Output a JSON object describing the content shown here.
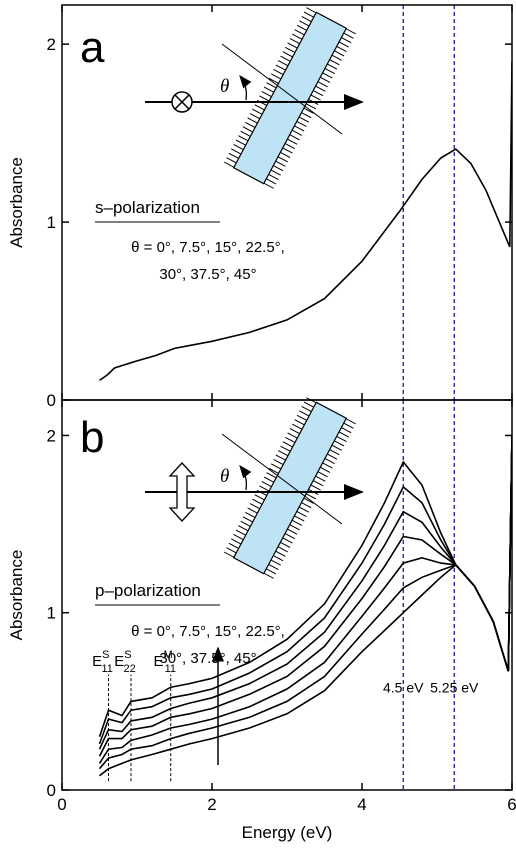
{
  "chart_data": [
    {
      "type": "line",
      "panel_label": "a",
      "ylabel": "Absorbance",
      "xlim": [
        0,
        6
      ],
      "xticks": [
        0,
        2,
        4,
        6
      ],
      "xtick_labels": false,
      "ylim": [
        0,
        2.22
      ],
      "yticks": [
        0,
        1,
        2
      ],
      "color": "#000000",
      "x": [
        0.5,
        0.6,
        0.7,
        0.85,
        1.0,
        1.25,
        1.5,
        1.75,
        2.0,
        2.5,
        3.0,
        3.5,
        4.0,
        4.5,
        4.8,
        5.05,
        5.25,
        5.45,
        5.65,
        5.85,
        5.97,
        6.0
      ],
      "values": [
        0.11,
        0.14,
        0.18,
        0.2,
        0.22,
        0.25,
        0.29,
        0.31,
        0.33,
        0.38,
        0.45,
        0.57,
        0.78,
        1.06,
        1.24,
        1.36,
        1.41,
        1.33,
        1.18,
        0.98,
        0.86,
        1.9
      ],
      "vlines": [
        4.55,
        5.23
      ],
      "vline_color": "#1a1aa0",
      "polarization": "s–polarization",
      "angles": [
        "θ = 0°, 7.5°, 15°, 22.5°,",
        "30°, 37.5°, 45°"
      ],
      "inset_label": "θ"
    },
    {
      "type": "line",
      "panel_label": "b",
      "ylabel": "Absorbance",
      "xlabel": "Energy (eV)",
      "xlim": [
        0,
        6
      ],
      "xticks": [
        0,
        2,
        4,
        6
      ],
      "xtick_labels": true,
      "ylim": [
        0,
        2.2
      ],
      "yticks": [
        0,
        1,
        2
      ],
      "x": [
        0.5,
        0.62,
        0.8,
        0.92,
        1.2,
        1.45,
        1.7,
        2.0,
        2.5,
        3.0,
        3.5,
        4.0,
        4.3,
        4.55,
        4.8,
        5.05,
        5.25,
        5.5,
        5.75,
        5.95,
        6.0
      ],
      "series": [
        {
          "color": "#000000",
          "values": [
            0.08,
            0.12,
            0.15,
            0.17,
            0.2,
            0.23,
            0.26,
            0.29,
            0.35,
            0.43,
            0.56,
            0.78,
            0.9,
            1.0,
            1.1,
            1.2,
            1.27,
            1.15,
            0.95,
            0.67,
            2.0
          ]
        },
        {
          "color": "#000000",
          "values": [
            0.12,
            0.18,
            0.2,
            0.23,
            0.25,
            0.29,
            0.32,
            0.35,
            0.41,
            0.5,
            0.64,
            0.88,
            1.02,
            1.14,
            1.2,
            1.24,
            1.27,
            1.15,
            0.95,
            0.67,
            2.0
          ]
        },
        {
          "color": "#000000",
          "values": [
            0.15,
            0.23,
            0.24,
            0.28,
            0.31,
            0.35,
            0.37,
            0.4,
            0.47,
            0.57,
            0.72,
            0.98,
            1.14,
            1.28,
            1.31,
            1.28,
            1.27,
            1.15,
            0.95,
            0.67,
            2.0
          ]
        },
        {
          "color": "#000000",
          "values": [
            0.19,
            0.29,
            0.29,
            0.34,
            0.36,
            0.41,
            0.43,
            0.46,
            0.54,
            0.64,
            0.81,
            1.08,
            1.26,
            1.43,
            1.41,
            1.33,
            1.27,
            1.15,
            0.95,
            0.67,
            2.0
          ]
        },
        {
          "color": "#000000",
          "values": [
            0.23,
            0.34,
            0.33,
            0.39,
            0.41,
            0.46,
            0.49,
            0.52,
            0.6,
            0.71,
            0.89,
            1.18,
            1.38,
            1.57,
            1.51,
            1.37,
            1.27,
            1.15,
            0.95,
            0.67,
            2.0
          ]
        },
        {
          "color": "#000000",
          "values": [
            0.26,
            0.4,
            0.38,
            0.45,
            0.47,
            0.52,
            0.54,
            0.57,
            0.66,
            0.78,
            0.97,
            1.28,
            1.5,
            1.71,
            1.62,
            1.41,
            1.27,
            1.15,
            0.95,
            0.67,
            2.0
          ]
        },
        {
          "color": "#000000",
          "values": [
            0.3,
            0.45,
            0.42,
            0.5,
            0.52,
            0.58,
            0.6,
            0.63,
            0.72,
            0.85,
            1.05,
            1.38,
            1.62,
            1.85,
            1.72,
            1.45,
            1.27,
            1.15,
            0.95,
            0.67,
            2.0
          ]
        }
      ],
      "vlines": [
        4.55,
        5.23
      ],
      "vline_color": "#1a1aa0",
      "transitions": [
        {
          "base": "E",
          "sup": "S",
          "sub": "11",
          "x": 0.62
        },
        {
          "base": "E",
          "sup": "S",
          "sub": "22",
          "x": 0.92
        },
        {
          "base": "E",
          "sup": "M",
          "sub": "11",
          "x": 1.45
        }
      ],
      "annotations": [
        "4.5 eV",
        "5.25 eV"
      ],
      "polarization": "p–polarization",
      "angles": [
        "θ = 0°, 7.5°, 15°, 22.5°,",
        "30°, 37.5°, 45°"
      ],
      "inset_label": "θ"
    }
  ]
}
